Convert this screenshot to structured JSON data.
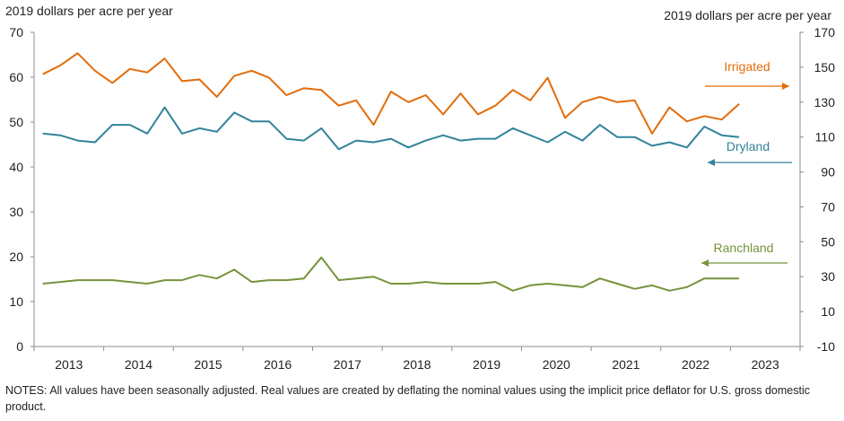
{
  "chart_data": {
    "type": "line",
    "title": "",
    "ylabel_left": "2019 dollars per acre per year",
    "ylabel_right": "2019 dollars per acre per year",
    "ylim_left": [
      0,
      70
    ],
    "ylim_right": [
      -10,
      170
    ],
    "yticks_left": [
      "0",
      "10",
      "20",
      "30",
      "40",
      "50",
      "60",
      "70"
    ],
    "yticks_right": [
      "-10",
      "10",
      "30",
      "50",
      "70",
      "90",
      "110",
      "130",
      "150",
      "170"
    ],
    "year_labels": [
      "2013",
      "2014",
      "2015",
      "2016",
      "2017",
      "2018",
      "2019",
      "2020",
      "2021",
      "2022",
      "2023"
    ],
    "quarters": [
      "2013Q1",
      "2013Q2",
      "2013Q3",
      "2013Q4",
      "2014Q1",
      "2014Q2",
      "2014Q3",
      "2014Q4",
      "2015Q1",
      "2015Q2",
      "2015Q3",
      "2015Q4",
      "2016Q1",
      "2016Q2",
      "2016Q3",
      "2016Q4",
      "2017Q1",
      "2017Q2",
      "2017Q3",
      "2017Q4",
      "2018Q1",
      "2018Q2",
      "2018Q3",
      "2018Q4",
      "2019Q1",
      "2019Q2",
      "2019Q3",
      "2019Q4",
      "2020Q1",
      "2020Q2",
      "2020Q3",
      "2020Q4",
      "2021Q1",
      "2021Q2",
      "2021Q3",
      "2021Q4",
      "2022Q1",
      "2022Q2",
      "2022Q3",
      "2022Q4",
      "2023Q1"
    ],
    "series": [
      {
        "name": "Irrigated",
        "axis": "right",
        "color": "#E36C0A",
        "values": [
          146,
          151,
          158,
          148,
          141,
          149,
          147,
          155,
          142,
          143,
          133,
          145,
          148,
          144,
          134,
          138,
          137,
          128,
          131,
          117,
          136,
          130,
          134,
          123,
          135,
          123,
          128,
          137,
          131,
          144,
          121,
          130,
          133,
          130,
          131,
          112,
          127,
          119,
          122,
          120,
          129
        ]
      },
      {
        "name": "Dryland",
        "axis": "right",
        "color": "#31849B",
        "values": [
          112,
          111,
          108,
          107,
          117,
          117,
          112,
          127,
          112,
          115,
          113,
          124,
          119,
          119,
          109,
          108,
          115,
          103,
          108,
          107,
          109,
          104,
          108,
          111,
          108,
          109,
          109,
          115,
          111,
          107,
          113,
          108,
          117,
          110,
          110,
          105,
          107,
          104,
          116,
          111,
          110
        ]
      },
      {
        "name": "Ranchland",
        "axis": "right",
        "color": "#77933C",
        "values": [
          26,
          27,
          28,
          28,
          28,
          27,
          26,
          28,
          28,
          31,
          29,
          34,
          27,
          28,
          28,
          29,
          41,
          28,
          29,
          30,
          26,
          26,
          27,
          26,
          26,
          26,
          27,
          22,
          25,
          26,
          25,
          24,
          29,
          26,
          23,
          25,
          22,
          24,
          29,
          29,
          29
        ]
      }
    ],
    "annotations": [
      {
        "series": "Irrigated",
        "label": "Irrigated",
        "arrow": "right"
      },
      {
        "series": "Dryland",
        "label": "Dryland",
        "arrow": "left"
      },
      {
        "series": "Ranchland",
        "label": "Ranchland",
        "arrow": "left"
      }
    ],
    "notes": "NOTES: All values have been seasonally adjusted. Real values are created by deflating the nominal values using the implicit price deflator for U.S. gross domestic product."
  }
}
